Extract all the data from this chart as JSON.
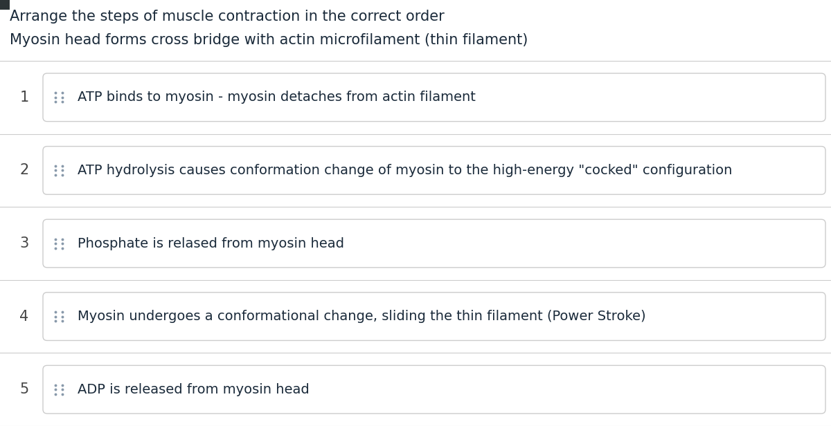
{
  "title": "Arrange the steps of muscle contraction in the correct order",
  "subtitle": "Myosin head forms cross bridge with actin microfilament (thin filament)",
  "steps": [
    {
      "num": 1,
      "text": "ATP binds to myosin - myosin detaches from actin filament"
    },
    {
      "num": 2,
      "text": "ATP hydrolysis causes conformation change of myosin to the high-energy \"cocked\" configuration"
    },
    {
      "num": 3,
      "text": "Phosphate is relased from myosin head"
    },
    {
      "num": 4,
      "text": "Myosin undergoes a conformational change, sliding the thin filament (Power Stroke)"
    },
    {
      "num": 5,
      "text": "ADP is released from myosin head"
    }
  ],
  "bg_color": "#ffffff",
  "card_bg": "#ffffff",
  "card_border": "#cccccc",
  "separator_color": "#cccccc",
  "text_color": "#1a2a3a",
  "num_color": "#444444",
  "title_fontsize": 15,
  "subtitle_fontsize": 15,
  "step_fontsize": 14,
  "num_fontsize": 15,
  "dot_color": "#8899aa",
  "dark_bar_color": "#2d3436"
}
